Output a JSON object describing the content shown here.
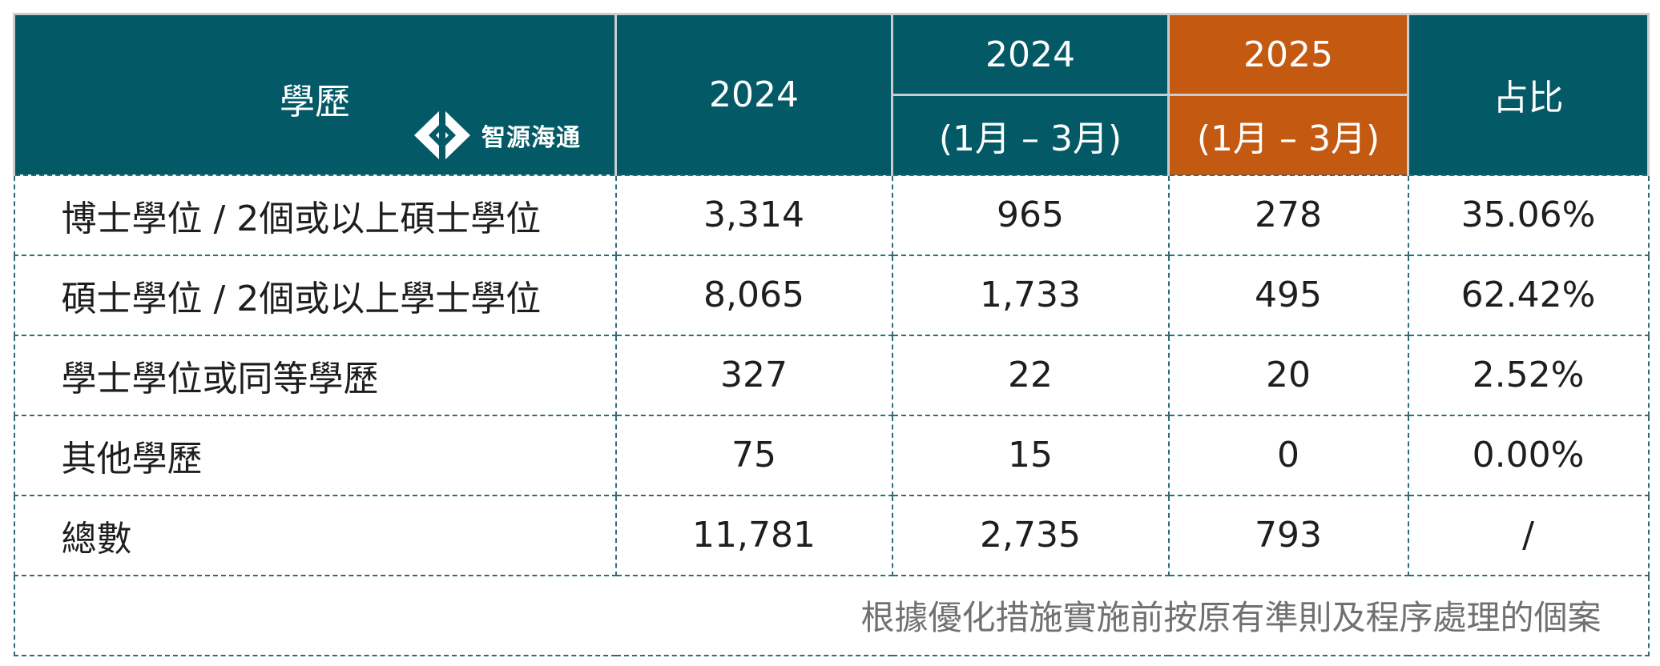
{
  "header": {
    "education": "學歷",
    "col_2024": "2024",
    "col_2024_q1_year": "2024",
    "col_2024_q1_period": "(1月 – 3月)",
    "col_2025_q1_year": "2025",
    "col_2025_q1_period": "(1月 – 3月)",
    "col_share": "占比"
  },
  "logo": {
    "brand": "智源海通",
    "icon": "diamond-logo-icon"
  },
  "colors": {
    "teal": "#035a66",
    "orange": "#c45a12"
  },
  "rows": [
    {
      "label": "博士學位 / 2個或以上碩士學位",
      "y2024": "3,314",
      "y2024q1": "965",
      "y2025q1": "278",
      "share": "35.06%"
    },
    {
      "label": "碩士學位 / 2個或以上學士學位",
      "y2024": "8,065",
      "y2024q1": "1,733",
      "y2025q1": "495",
      "share": "62.42%"
    },
    {
      "label": "學士學位或同等學歷",
      "y2024": "327",
      "y2024q1": "22",
      "y2025q1": "20",
      "share": "2.52%"
    },
    {
      "label": "其他學歷",
      "y2024": "75",
      "y2024q1": "15",
      "y2025q1": "0",
      "share": "0.00%"
    },
    {
      "label": "總數",
      "y2024": "11,781",
      "y2024q1": "2,735",
      "y2025q1": "793",
      "share": "/"
    }
  ],
  "note": "根據優化措施實施前按原有準則及程序處理的個案"
}
